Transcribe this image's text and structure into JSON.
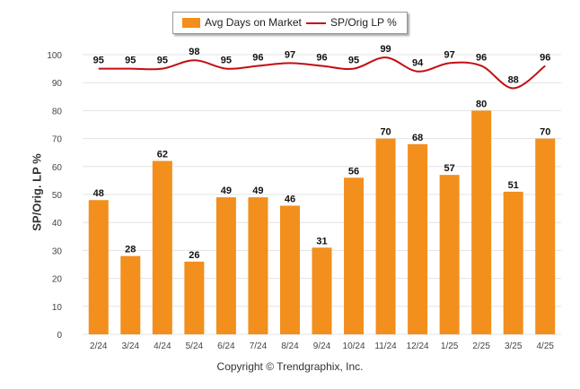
{
  "chart_data": {
    "type": "bar",
    "categories": [
      "2/24",
      "3/24",
      "4/24",
      "5/24",
      "6/24",
      "7/24",
      "8/24",
      "9/24",
      "10/24",
      "11/24",
      "12/24",
      "1/25",
      "2/25",
      "3/25",
      "4/25"
    ],
    "series": [
      {
        "name": "Avg Days on Market",
        "type": "bar",
        "color": "#f28f1d",
        "values": [
          48,
          28,
          62,
          26,
          49,
          49,
          46,
          31,
          56,
          70,
          68,
          57,
          80,
          51,
          70
        ]
      },
      {
        "name": "SP/Orig LP %",
        "type": "line",
        "color": "#c30e12",
        "values": [
          95,
          95,
          95,
          98,
          95,
          96,
          97,
          96,
          95,
          99,
          94,
          97,
          96,
          88,
          96
        ]
      }
    ],
    "ylabel": "SP/Orig. LP %",
    "ylim": [
      0,
      100
    ],
    "yticks": [
      0,
      10,
      20,
      30,
      40,
      50,
      60,
      70,
      80,
      90,
      100
    ],
    "grid": true,
    "legend_position": "top-center"
  },
  "footer": {
    "copyright": "Copyright © Trendgraphix, Inc."
  }
}
